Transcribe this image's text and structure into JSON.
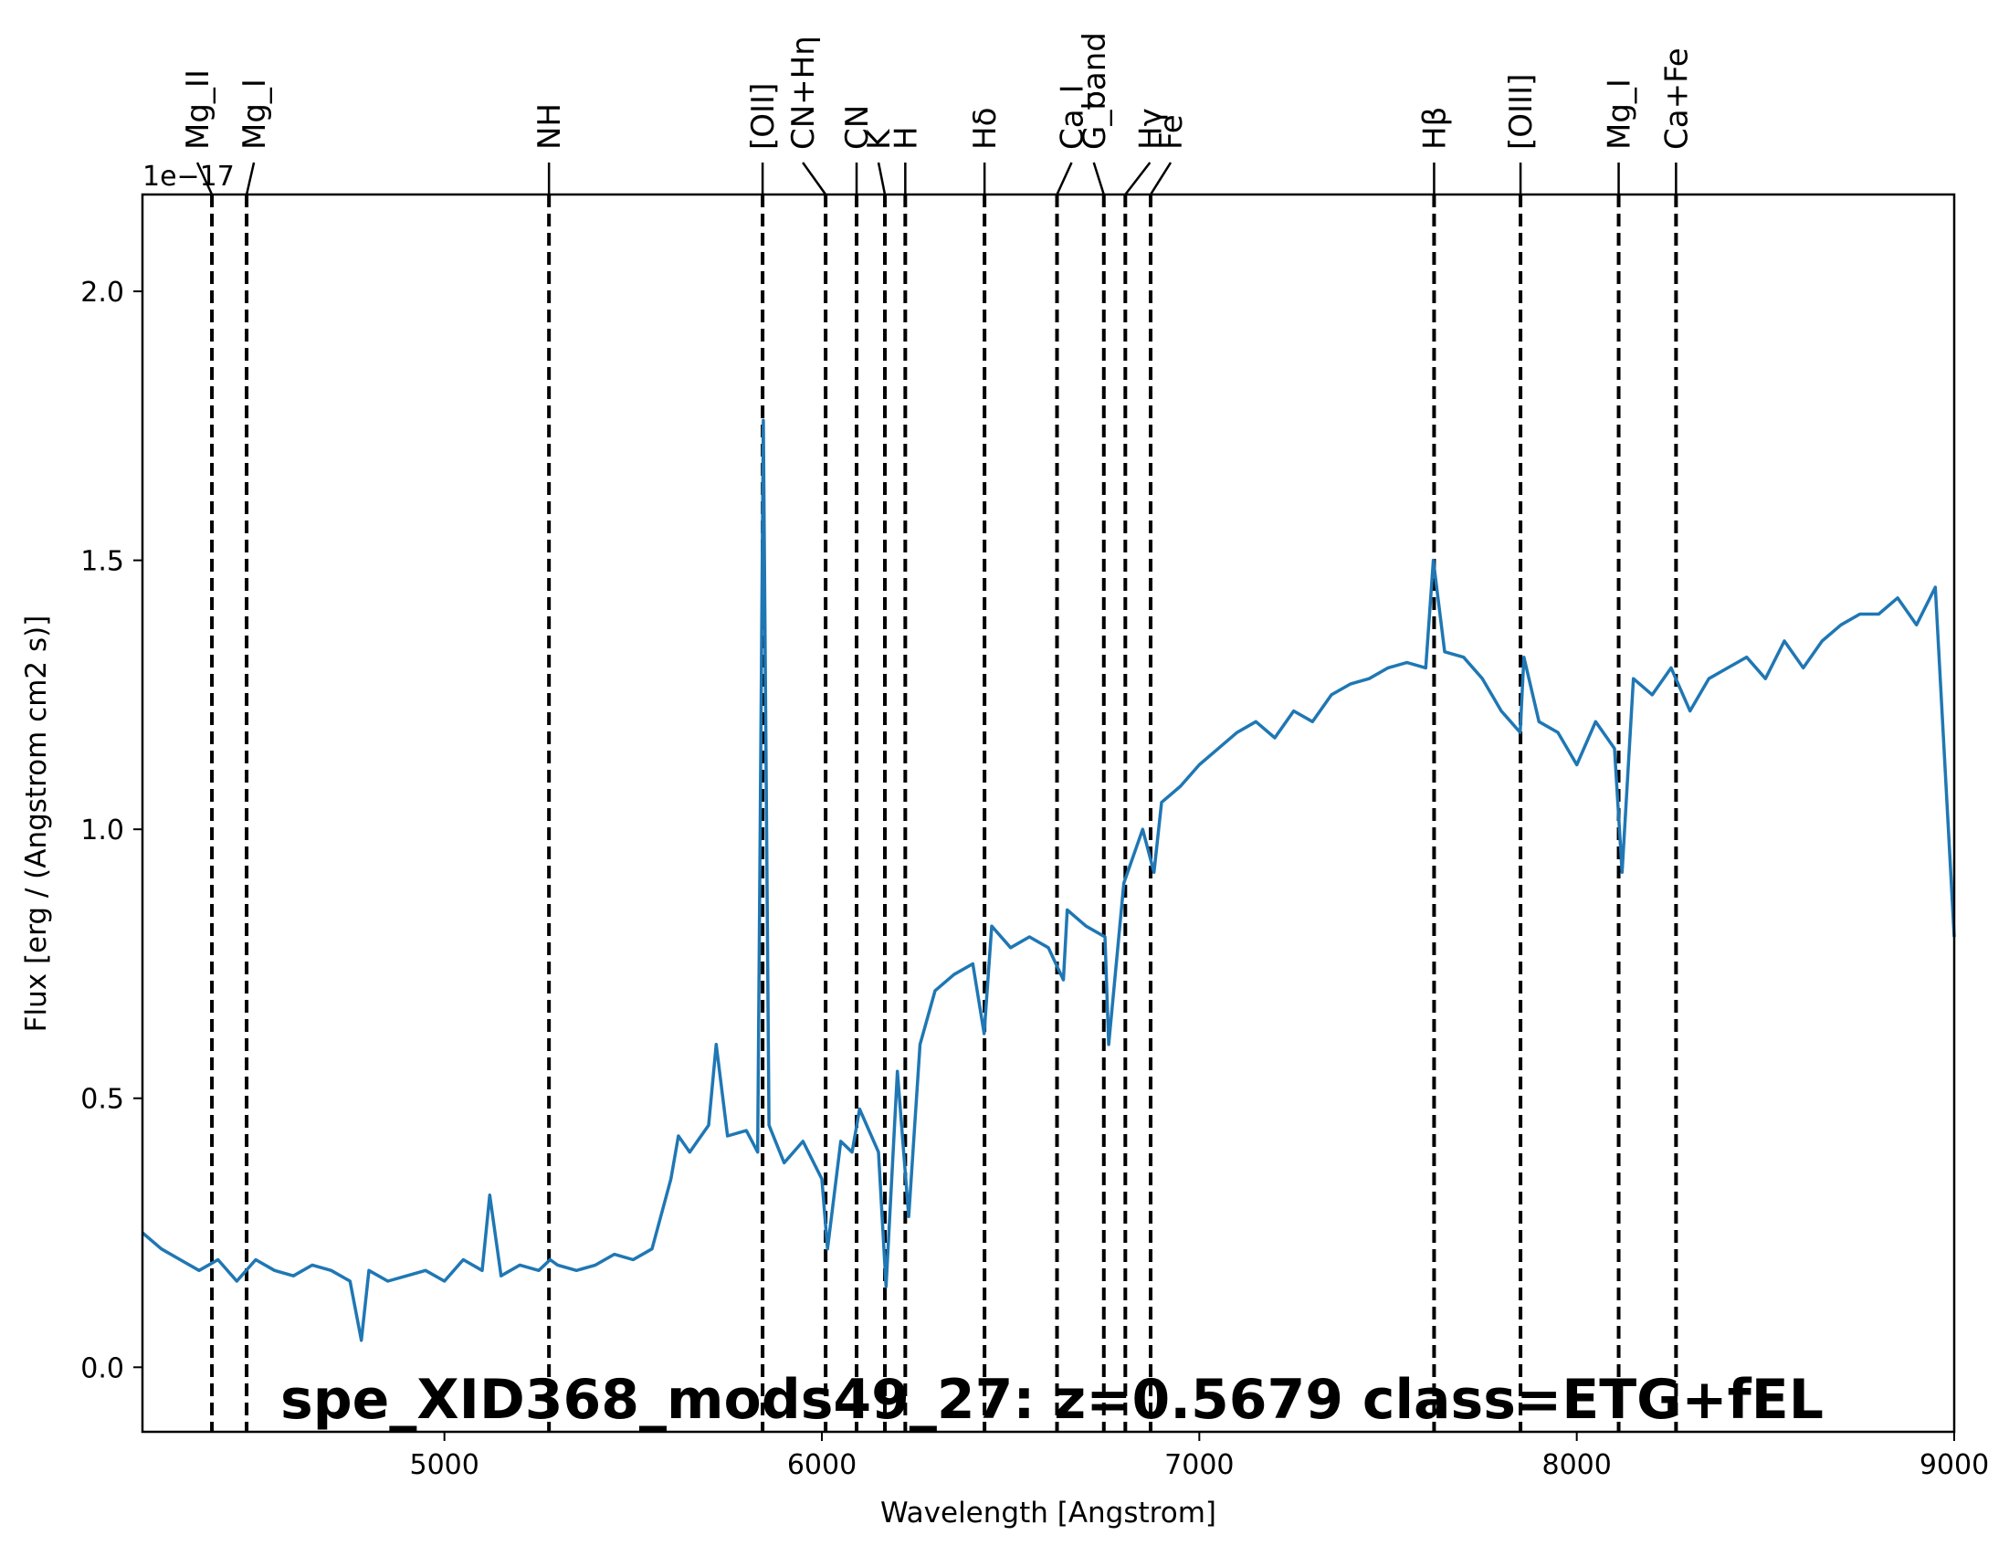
{
  "chart_data": {
    "type": "line",
    "title": "spe_XID368_mods49_27: z=0.5679 class=ETG+fEL",
    "title_color": "#ffa500",
    "xlabel": "Wavelength [Angstrom]",
    "ylabel": "Flux [erg / (Angstrom cm2 s)]",
    "y_offset_label": "1e−17",
    "xlim": [
      4200,
      9000
    ],
    "ylim": [
      -0.12,
      2.18
    ],
    "x_ticks": [
      5000,
      6000,
      7000,
      8000,
      9000
    ],
    "x_tick_labels": [
      "5000",
      "6000",
      "7000",
      "8000",
      "9000"
    ],
    "y_ticks": [
      0.0,
      0.5,
      1.0,
      1.5,
      2.0
    ],
    "y_tick_labels": [
      "0.0",
      "0.5",
      "1.0",
      "1.5",
      "2.0"
    ],
    "grid": false,
    "series": [
      {
        "color": "#1f77b4",
        "x": [
          4200,
          4250,
          4300,
          4350,
          4400,
          4450,
          4500,
          4550,
          4600,
          4650,
          4700,
          4750,
          4780,
          4800,
          4850,
          4900,
          4950,
          5000,
          5050,
          5100,
          5120,
          5150,
          5200,
          5250,
          5280,
          5300,
          5350,
          5400,
          5450,
          5500,
          5550,
          5600,
          5620,
          5650,
          5700,
          5720,
          5750,
          5800,
          5830,
          5845,
          5860,
          5900,
          5950,
          6000,
          6015,
          6050,
          6080,
          6100,
          6150,
          6170,
          6200,
          6230,
          6260,
          6300,
          6350,
          6400,
          6430,
          6450,
          6500,
          6550,
          6600,
          6640,
          6650,
          6700,
          6750,
          6760,
          6800,
          6850,
          6880,
          6900,
          6950,
          7000,
          7050,
          7100,
          7150,
          7200,
          7250,
          7300,
          7350,
          7400,
          7450,
          7500,
          7550,
          7600,
          7620,
          7650,
          7700,
          7750,
          7800,
          7850,
          7860,
          7900,
          7950,
          8000,
          8050,
          8100,
          8120,
          8150,
          8200,
          8250,
          8300,
          8350,
          8400,
          8450,
          8500,
          8550,
          8600,
          8650,
          8700,
          8750,
          8800,
          8850,
          8900,
          8950,
          9000
        ],
        "y": [
          0.25,
          0.22,
          0.2,
          0.18,
          0.2,
          0.16,
          0.2,
          0.18,
          0.17,
          0.19,
          0.18,
          0.16,
          0.05,
          0.18,
          0.16,
          0.17,
          0.18,
          0.16,
          0.2,
          0.18,
          0.32,
          0.17,
          0.19,
          0.18,
          0.2,
          0.19,
          0.18,
          0.19,
          0.21,
          0.2,
          0.22,
          0.35,
          0.43,
          0.4,
          0.45,
          0.6,
          0.43,
          0.44,
          0.4,
          1.76,
          0.45,
          0.38,
          0.42,
          0.35,
          0.22,
          0.42,
          0.4,
          0.48,
          0.4,
          0.15,
          0.55,
          0.28,
          0.6,
          0.7,
          0.73,
          0.75,
          0.62,
          0.82,
          0.78,
          0.8,
          0.78,
          0.72,
          0.85,
          0.82,
          0.8,
          0.6,
          0.9,
          1.0,
          0.92,
          1.05,
          1.08,
          1.12,
          1.15,
          1.18,
          1.2,
          1.17,
          1.22,
          1.2,
          1.25,
          1.27,
          1.28,
          1.3,
          1.31,
          1.3,
          1.5,
          1.33,
          1.32,
          1.28,
          1.22,
          1.18,
          1.32,
          1.2,
          1.18,
          1.12,
          1.2,
          1.15,
          0.92,
          1.28,
          1.25,
          1.3,
          1.22,
          1.28,
          1.3,
          1.32,
          1.28,
          1.35,
          1.3,
          1.35,
          1.38,
          1.4,
          1.4,
          1.43,
          1.38,
          1.45,
          0.8
        ]
      }
    ],
    "vlines": [
      {
        "label": "Mg_II",
        "x": 4384
      },
      {
        "label": "Mg_I",
        "x": 4476
      },
      {
        "label": "NH",
        "x": 5277
      },
      {
        "label": "[OII]",
        "x": 5843
      },
      {
        "label": "CN+Hη",
        "x": 6010
      },
      {
        "label": "CN",
        "x": 6092
      },
      {
        "label": "K",
        "x": 6167
      },
      {
        "label": "H",
        "x": 6221
      },
      {
        "label": "Hδ",
        "x": 6431
      },
      {
        "label": "Ca_I",
        "x": 6623
      },
      {
        "label": "G_band",
        "x": 6747
      },
      {
        "label": "Hγ",
        "x": 6804
      },
      {
        "label": "Fe",
        "x": 6871
      },
      {
        "label": "Hβ",
        "x": 7622
      },
      {
        "label": "[OIII]",
        "x": 7851
      },
      {
        "label": "Mg_I",
        "x": 8111
      },
      {
        "label": "Ca+Fe",
        "x": 8263
      }
    ]
  }
}
